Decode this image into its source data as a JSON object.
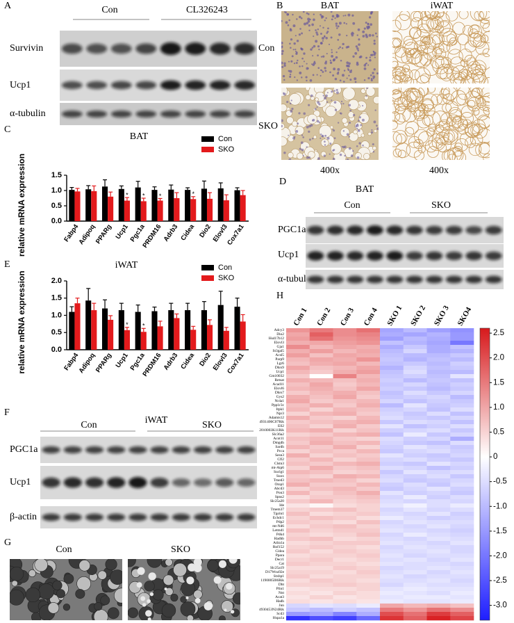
{
  "chart_data": [
    {
      "type": "bar",
      "panel_label": "C",
      "title": "BAT",
      "y_label": "relative mRNA expression",
      "legend": "upper right",
      "categories": [
        "Fabp4",
        "Adipoq",
        "PPARg",
        "Ucp1",
        "Pgc1a",
        "PRDM16",
        "Adrb3",
        "Cidea",
        "Dio2",
        "Elovl3",
        "Cox7a1"
      ],
      "series": [
        {
          "name": "Con",
          "color": "#000000",
          "values": [
            1.02,
            1.04,
            1.13,
            1.05,
            1.1,
            1.02,
            1.03,
            1.02,
            1.06,
            1.07,
            1.01
          ],
          "errors": [
            0.08,
            0.12,
            0.22,
            0.1,
            0.2,
            0.1,
            0.15,
            0.07,
            0.25,
            0.18,
            0.08
          ]
        },
        {
          "name": "SKO",
          "color": "#e31a1c",
          "values": [
            0.97,
            0.98,
            0.8,
            0.67,
            0.65,
            0.67,
            0.75,
            0.72,
            0.73,
            0.68,
            0.85
          ],
          "errors": [
            0.1,
            0.17,
            0.15,
            0.1,
            0.1,
            0.07,
            0.18,
            0.08,
            0.2,
            0.18,
            0.15
          ],
          "significance": [
            null,
            null,
            null,
            "*",
            "*",
            "*",
            null,
            "*",
            null,
            null,
            null
          ]
        }
      ],
      "ylim": [
        0,
        1.5
      ],
      "yticks": [
        {
          "value": 0,
          "label": "0.0"
        },
        0.5,
        {
          "value": 1,
          "label": "1.0"
        },
        1.5
      ]
    },
    {
      "type": "bar",
      "panel_label": "E",
      "title": "iWAT",
      "y_label": "relative mRNA expression",
      "legend": "upper right",
      "categories": [
        "Fabp4",
        "Adipoq",
        "PPARg",
        "Ucp1",
        "Pgc1a",
        "PRDM16",
        "Adrb3",
        "Cidea",
        "Dio2",
        "Elovl3",
        "Cox7a1"
      ],
      "series": [
        {
          "name": "Con",
          "color": "#000000",
          "values": [
            1.1,
            1.43,
            1.2,
            1.15,
            1.1,
            1.12,
            1.15,
            1.15,
            1.15,
            1.3,
            1.25
          ],
          "errors": [
            0.15,
            0.35,
            0.25,
            0.2,
            0.2,
            0.12,
            0.2,
            0.2,
            0.25,
            0.4,
            0.25
          ]
        },
        {
          "name": "SKO",
          "color": "#e31a1c",
          "values": [
            1.35,
            1.15,
            0.87,
            0.57,
            0.52,
            0.68,
            0.92,
            0.58,
            0.72,
            0.55,
            0.82
          ],
          "errors": [
            0.15,
            0.2,
            0.12,
            0.08,
            0.1,
            0.15,
            0.12,
            0.1,
            0.15,
            0.1,
            0.2
          ],
          "significance": [
            null,
            null,
            null,
            "*",
            "*",
            null,
            null,
            null,
            null,
            null,
            null
          ]
        }
      ],
      "ylim": [
        0,
        2
      ],
      "yticks": [
        {
          "value": 0,
          "label": "0.0"
        },
        0.5,
        {
          "value": 1,
          "label": "1.0"
        },
        1.5,
        {
          "value": 2,
          "label": "2.0"
        }
      ]
    },
    {
      "type": "heatmap",
      "panel_label": "H",
      "columns": [
        "Con 1",
        "Con 2",
        "Con 3",
        "Con 4",
        "SKO 1",
        "SKO 2",
        "SKO 3",
        "SKO4"
      ],
      "rows": [
        "Adcy3",
        "Dio2",
        "Hsd17b12",
        "Elovl3",
        "Gja1",
        "St3gal5",
        "Acsl5",
        "Parp9",
        "Lgr6",
        "Dhrs9",
        "Ucp1",
        "Gm10032",
        "Retsat",
        "Acad11",
        "Elovl6",
        "Dhrs7",
        "Gys2",
        "Nr4a1",
        "Ppp1r3c",
        "Itpk1",
        "Npr3",
        "Adamts12",
        "4931406C07Rik",
        "Ell2",
        "2010003K11Rik",
        "Slc36a2",
        "Acot11",
        "Dmgdh",
        "Sardh",
        "Pcca",
        "Sesn3",
        "Cfl2",
        "Clstn3",
        "mt-Atp6",
        "Suclg1",
        "Suox",
        "Tmed3",
        "Otop1",
        "Abcd3",
        "Pon3",
        "Spns2",
        "Slc25a20",
        "Ide",
        "Tmem37",
        "Tgoln1",
        "Echdc1",
        "Pdp2",
        "mt-Nd6",
        "Letmd1",
        "Pdk4",
        "Hadhb",
        "Adra1a",
        "Rnf152",
        "Cidea",
        "Ppara",
        "Decr1",
        "Cat",
        "Slc25a19",
        "D17Wsu92e",
        "Stxbp1",
        "1190005I06Rik",
        "Dbt",
        "Plin1",
        "Nnt",
        "Acat3",
        "Hadh",
        "Jun",
        "4930453N24Rik",
        "Scd3",
        "Hspa1a"
      ],
      "values": [
        [
          1.2,
          1.5,
          1.3,
          1.6,
          -1.3,
          -1.0,
          -1.4,
          -1.6
        ],
        [
          1.0,
          1.8,
          1.3,
          1.4,
          -1.2,
          -1.3,
          -1.1,
          -1.5
        ],
        [
          1.1,
          1.6,
          1.2,
          1.3,
          -1.4,
          -1.0,
          -1.2,
          -1.5
        ],
        [
          0.9,
          1.0,
          1.1,
          1.2,
          -0.9,
          -1.1,
          -1.3,
          -2.0
        ],
        [
          1.3,
          0.8,
          1.0,
          0.9,
          -1.2,
          -0.8,
          -1.2,
          -0.9
        ],
        [
          0.9,
          1.1,
          0.8,
          1.0,
          -1.0,
          -0.6,
          -1.2,
          -1.1
        ],
        [
          1.1,
          0.7,
          1.0,
          0.9,
          -0.9,
          -1.0,
          -1.0,
          -0.8
        ],
        [
          0.8,
          1.0,
          0.9,
          1.2,
          -0.8,
          -1.1,
          -0.9,
          -1.0
        ],
        [
          0.7,
          0.9,
          1.0,
          0.8,
          -0.9,
          -0.8,
          -1.0,
          -0.7
        ],
        [
          1.0,
          0.7,
          0.8,
          1.0,
          -1.1,
          -0.6,
          -0.9,
          -0.8
        ],
        [
          0.8,
          0.6,
          0.9,
          1.1,
          -0.9,
          -0.5,
          -1.0,
          -1.0
        ],
        [
          0.6,
          0.0,
          1.4,
          0.8,
          -0.8,
          -0.7,
          -0.9,
          -0.4
        ],
        [
          0.9,
          0.8,
          0.7,
          0.9,
          -0.7,
          -1.0,
          -0.8,
          -0.9
        ],
        [
          0.7,
          1.0,
          0.6,
          0.8,
          -0.8,
          -0.6,
          -0.9,
          -0.7
        ],
        [
          0.8,
          0.9,
          0.7,
          1.0,
          -0.7,
          -0.8,
          -1.0,
          -0.8
        ],
        [
          0.6,
          0.8,
          0.9,
          0.7,
          -0.9,
          -0.5,
          -0.8,
          -0.6
        ],
        [
          0.9,
          0.7,
          1.0,
          0.6,
          -0.8,
          -0.7,
          -0.6,
          -1.0
        ],
        [
          1.0,
          0.6,
          0.7,
          0.8,
          -0.6,
          -0.9,
          -0.7,
          -0.8
        ],
        [
          0.7,
          0.9,
          0.6,
          0.9,
          -1.0,
          -0.4,
          -0.8,
          -0.7
        ],
        [
          0.8,
          0.5,
          0.8,
          0.7,
          -0.7,
          -0.6,
          -0.9,
          -0.5
        ],
        [
          0.5,
          0.8,
          0.9,
          0.6,
          -0.6,
          -0.8,
          -0.5,
          -0.9
        ],
        [
          0.9,
          0.6,
          0.5,
          0.8,
          -0.5,
          -0.7,
          -0.8,
          -0.6
        ],
        [
          0.6,
          0.7,
          0.8,
          0.9,
          -0.8,
          -0.5,
          -0.6,
          -0.9
        ],
        [
          0.7,
          0.5,
          0.9,
          0.6,
          -0.4,
          -0.9,
          -0.7,
          -0.5
        ],
        [
          0.8,
          0.9,
          0.5,
          0.7,
          -0.7,
          -0.6,
          -0.5,
          -0.8
        ],
        [
          0.5,
          0.6,
          0.8,
          0.9,
          -0.9,
          -0.3,
          -0.8,
          -0.6
        ],
        [
          0.7,
          0.8,
          0.6,
          0.5,
          -0.5,
          -0.7,
          -0.6,
          -1.2
        ],
        [
          0.6,
          0.9,
          0.7,
          0.8,
          -0.6,
          -0.8,
          -0.9,
          -0.5
        ],
        [
          0.8,
          0.6,
          0.9,
          0.5,
          -0.7,
          -0.4,
          -0.6,
          -0.8
        ],
        [
          0.5,
          0.7,
          0.6,
          0.8,
          -0.8,
          -0.6,
          -0.5,
          -0.7
        ],
        [
          0.9,
          0.5,
          0.7,
          0.6,
          -0.4,
          -0.7,
          -0.8,
          -0.6
        ],
        [
          0.6,
          0.8,
          0.5,
          0.7,
          -0.6,
          -0.5,
          -0.7,
          -0.8
        ],
        [
          0.7,
          0.6,
          0.8,
          0.9,
          -0.7,
          -0.8,
          -0.4,
          -0.6
        ],
        [
          0.5,
          0.9,
          0.6,
          0.7,
          -0.5,
          -0.6,
          -0.9,
          -0.7
        ],
        [
          0.8,
          0.7,
          0.5,
          0.6,
          -0.8,
          -0.4,
          -0.6,
          -0.5
        ],
        [
          0.6,
          0.5,
          0.9,
          0.8,
          -0.6,
          -0.7,
          -0.5,
          -0.8
        ],
        [
          0.7,
          0.8,
          0.7,
          0.5,
          -0.5,
          -0.8,
          -0.7,
          -0.6
        ],
        [
          0.9,
          0.6,
          0.6,
          0.8,
          -0.7,
          -0.5,
          -0.8,
          -0.5
        ],
        [
          0.5,
          0.7,
          0.8,
          0.6,
          -0.8,
          -0.6,
          -0.4,
          -0.7
        ],
        [
          0.8,
          0.5,
          0.7,
          0.9,
          -0.4,
          -0.7,
          -0.6,
          -0.8
        ],
        [
          0.4,
          0.6,
          0.6,
          0.7,
          -0.6,
          -0.3,
          -0.7,
          -0.5
        ],
        [
          0.6,
          0.8,
          0.5,
          0.6,
          -0.5,
          -0.6,
          -0.5,
          -0.6
        ],
        [
          0.3,
          0.1,
          0.4,
          0.5,
          -0.4,
          -0.2,
          -0.5,
          -0.3
        ],
        [
          0.5,
          0.6,
          0.7,
          0.5,
          -0.6,
          -0.4,
          -0.6,
          -0.5
        ],
        [
          0.7,
          0.4,
          0.5,
          0.6,
          -0.5,
          -0.6,
          -0.4,
          -0.7
        ],
        [
          0.5,
          0.7,
          0.6,
          0.4,
          -0.3,
          -0.5,
          -0.7,
          -0.6
        ],
        [
          0.6,
          0.5,
          0.4,
          0.7,
          -0.6,
          -0.4,
          -0.5,
          -0.5
        ],
        [
          0.4,
          0.6,
          0.7,
          0.5,
          -0.5,
          -0.6,
          -0.4,
          -0.6
        ],
        [
          0.7,
          0.5,
          0.6,
          0.6,
          -0.4,
          -0.5,
          -0.6,
          -0.7
        ],
        [
          0.5,
          0.4,
          0.5,
          0.7,
          -0.6,
          -0.3,
          -0.5,
          -0.6
        ],
        [
          0.6,
          0.7,
          0.4,
          0.5,
          -0.5,
          -0.6,
          -0.4,
          -0.5
        ],
        [
          0.4,
          0.5,
          0.6,
          0.6,
          -0.4,
          -0.5,
          -0.6,
          -0.4
        ],
        [
          0.5,
          0.6,
          0.5,
          0.4,
          -0.6,
          -0.4,
          -0.5,
          -0.6
        ],
        [
          0.6,
          0.4,
          0.6,
          0.5,
          -0.5,
          -0.5,
          -0.4,
          -0.6
        ],
        [
          0.4,
          0.5,
          0.5,
          0.6,
          -0.4,
          -0.6,
          -0.5,
          -0.5
        ],
        [
          0.5,
          0.6,
          0.4,
          0.5,
          -0.5,
          -0.4,
          -0.6,
          -0.4
        ],
        [
          0.6,
          0.5,
          0.5,
          0.4,
          -0.4,
          -0.5,
          -0.5,
          -0.6
        ],
        [
          0.4,
          0.4,
          0.6,
          0.5,
          -0.6,
          -0.5,
          -0.4,
          -0.5
        ],
        [
          0.5,
          0.5,
          0.4,
          0.6,
          -0.5,
          -0.4,
          -0.6,
          -0.4
        ],
        [
          0.6,
          0.4,
          0.5,
          0.5,
          -0.4,
          -0.6,
          -0.5,
          -0.5
        ],
        [
          0.4,
          0.6,
          0.5,
          0.4,
          -0.5,
          -0.5,
          -0.4,
          -0.6
        ],
        [
          0.5,
          0.5,
          0.6,
          0.5,
          -0.6,
          -0.4,
          -0.5,
          -0.5
        ],
        [
          0.3,
          0.4,
          0.4,
          0.5,
          -0.4,
          -0.3,
          -0.4,
          -0.4
        ],
        [
          0.4,
          0.3,
          0.5,
          0.4,
          -0.3,
          -0.4,
          -0.5,
          -0.3
        ],
        [
          0.3,
          0.5,
          0.3,
          0.4,
          -0.4,
          -0.3,
          -0.3,
          -0.4
        ],
        [
          0.4,
          0.3,
          0.4,
          0.3,
          -0.3,
          -0.4,
          -0.4,
          -0.3
        ],
        [
          -0.6,
          -0.4,
          -0.5,
          -0.3,
          1.0,
          0.8,
          0.9,
          0.7
        ],
        [
          -0.8,
          -1.0,
          -0.7,
          -0.9,
          1.5,
          1.2,
          1.6,
          1.3
        ],
        [
          -1.5,
          -1.3,
          -1.8,
          -1.2,
          2.0,
          1.6,
          2.2,
          1.8
        ],
        [
          -3.0,
          -2.6,
          -2.8,
          -2.2,
          2.3,
          1.8,
          2.5,
          2.1
        ]
      ],
      "clim": [
        -3.3,
        2.6
      ],
      "colors": {
        "high": "#d7191c",
        "mid": "#ffffff",
        "low": "#1e1eff"
      },
      "colorbar_ticks": [
        2.5,
        {
          "value": 2,
          "label": "2.0"
        },
        1.5,
        {
          "value": 1,
          "label": "1.0"
        },
        0.5,
        0,
        -0.5,
        {
          "value": -1,
          "label": "-1.0"
        },
        -1.5,
        {
          "value": -2,
          "label": "-2.0"
        },
        -2.5,
        {
          "value": -3,
          "label": "-3.0"
        }
      ]
    }
  ],
  "panels": {
    "A": {
      "label": "A",
      "groups": [
        "Con",
        "CL326243"
      ],
      "blots": [
        "Survivin",
        "Ucp1",
        "α-tubulin"
      ]
    },
    "B": {
      "label": "B",
      "columns": [
        "BAT",
        "iWAT"
      ],
      "rows": [
        "Con",
        "SKO"
      ],
      "magnifications": [
        "400x",
        "400x"
      ]
    },
    "D": {
      "label": "D",
      "title": "BAT",
      "groups": [
        "Con",
        "SKO"
      ],
      "blots": [
        "PGC1a",
        "Ucp1",
        "α-tubulin"
      ]
    },
    "F": {
      "label": "F",
      "title": "iWAT",
      "groups": [
        "Con",
        "SKO"
      ],
      "blots": [
        "PGC1a",
        "Ucp1",
        "β-actin"
      ]
    },
    "G": {
      "label": "G",
      "images": [
        "Con",
        "SKO"
      ]
    }
  }
}
